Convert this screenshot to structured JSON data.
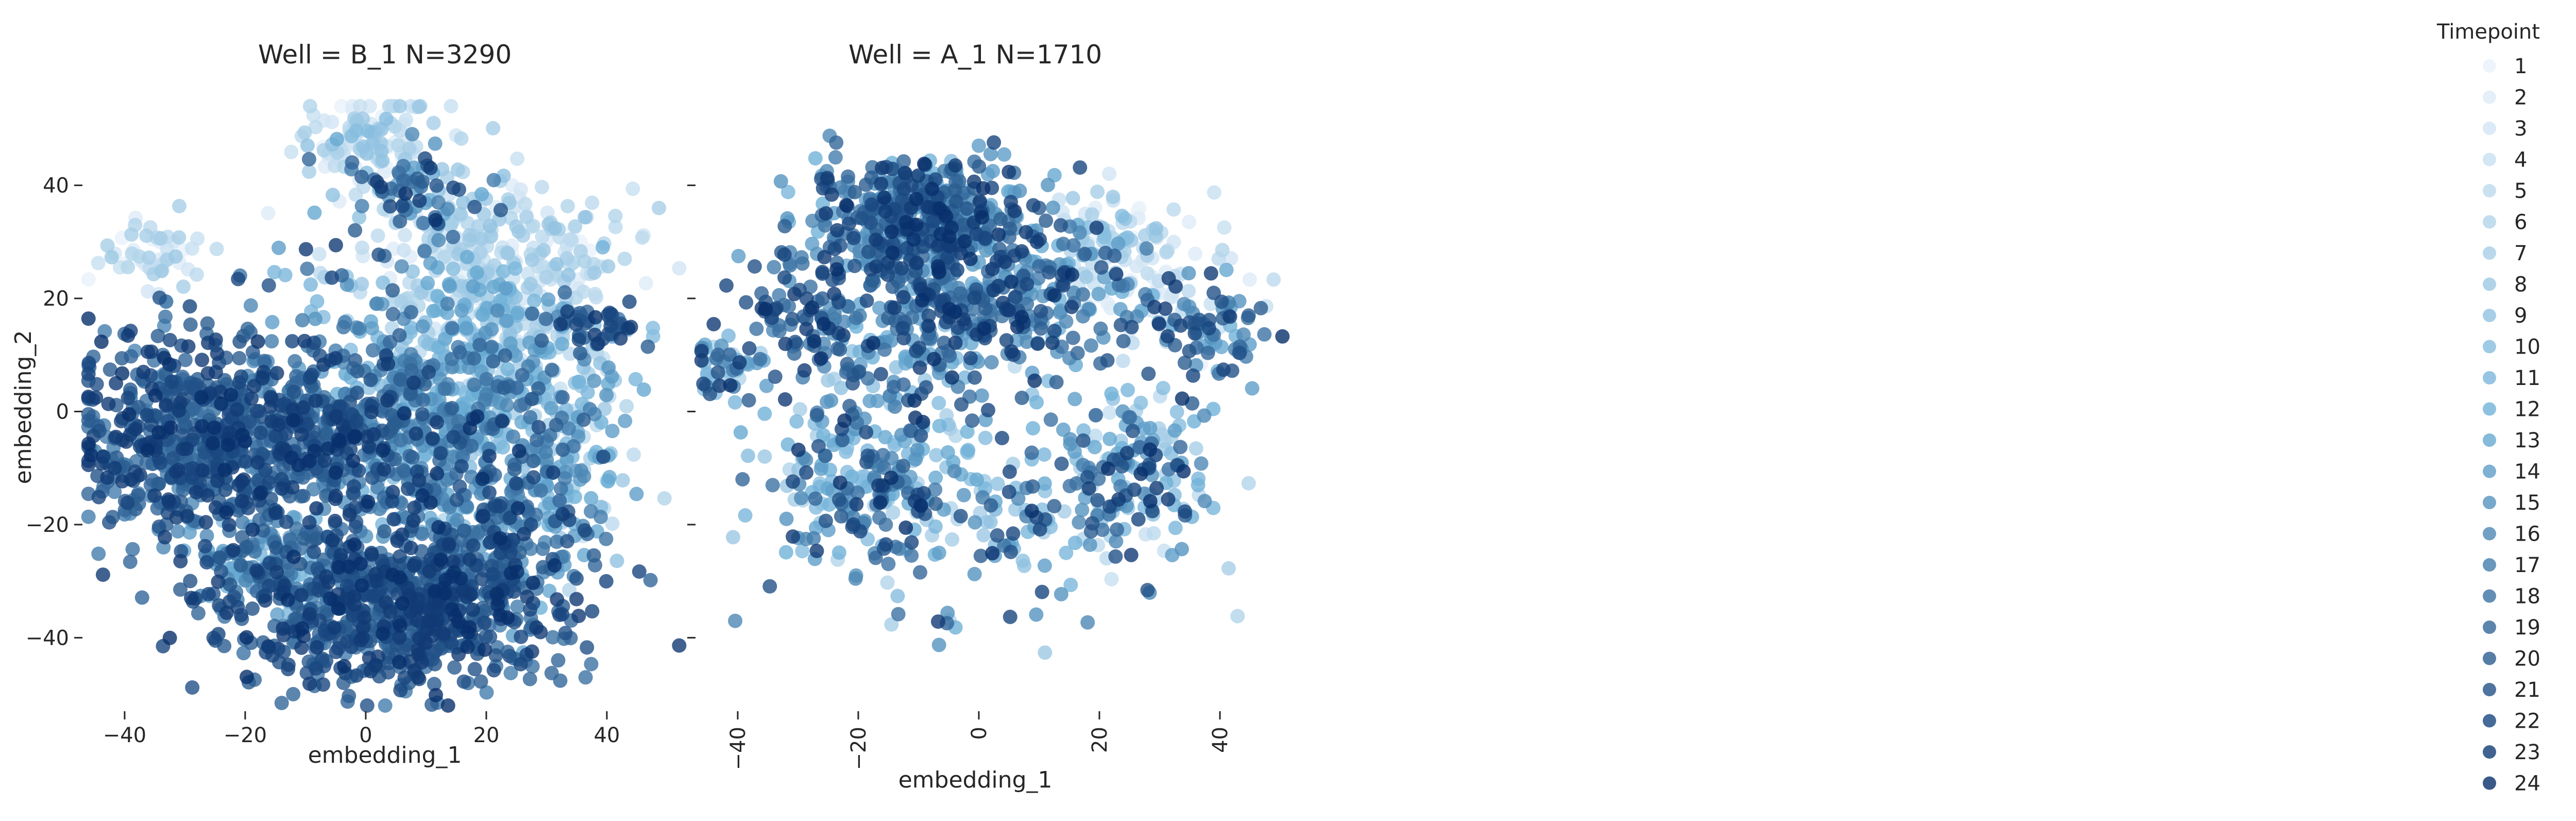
{
  "chart_data": {
    "type": "scatter",
    "legend": {
      "title": "Timepoint",
      "placement": "right",
      "entries": [
        "1",
        "2",
        "3",
        "4",
        "5",
        "6",
        "7",
        "8",
        "9",
        "10",
        "11",
        "12",
        "13",
        "14",
        "15",
        "16",
        "17",
        "18",
        "19",
        "20",
        "21",
        "22",
        "23",
        "24"
      ]
    },
    "colors": {
      "low": "#e8f1fa",
      "mid": "#6baed6",
      "high": "#08306b"
    },
    "panels": [
      {
        "title": "Well = B_1 N=3290",
        "xlabel": "embedding_1",
        "ylabel": "embedding_2",
        "xlim": [
          -47,
          53
        ],
        "ylim": [
          -53,
          55
        ],
        "xticks": [
          -40,
          -20,
          0,
          20,
          40
        ],
        "yticks": [
          -40,
          -20,
          0,
          20,
          40
        ],
        "x_tick_rotation": 0,
        "n_points": 3290,
        "clusters": [
          {
            "cx": 0,
            "cy": 48,
            "sx": 6,
            "sy": 4,
            "n": 110,
            "t": [
              1,
              10
            ]
          },
          {
            "cx": 8,
            "cy": 40,
            "sx": 5,
            "sy": 4,
            "n": 60,
            "t": [
              12,
              24
            ]
          },
          {
            "cx": -35,
            "cy": 28,
            "sx": 4,
            "sy": 3,
            "n": 50,
            "t": [
              1,
              8
            ]
          },
          {
            "cx": 18,
            "cy": 28,
            "sx": 12,
            "sy": 7,
            "n": 260,
            "t": [
              1,
              9
            ]
          },
          {
            "cx": 20,
            "cy": 15,
            "sx": 10,
            "sy": 6,
            "n": 180,
            "t": [
              2,
              14
            ]
          },
          {
            "cx": 10,
            "cy": 0,
            "sx": 12,
            "sy": 10,
            "n": 400,
            "t": [
              9,
              20
            ]
          },
          {
            "cx": 30,
            "cy": -5,
            "sx": 7,
            "sy": 10,
            "n": 180,
            "t": [
              4,
              16
            ]
          },
          {
            "cx": -30,
            "cy": -5,
            "sx": 9,
            "sy": 10,
            "n": 450,
            "t": [
              16,
              24
            ]
          },
          {
            "cx": -10,
            "cy": -5,
            "sx": 12,
            "sy": 8,
            "n": 420,
            "t": [
              16,
              24
            ]
          },
          {
            "cx": 5,
            "cy": -35,
            "sx": 14,
            "sy": 7,
            "n": 700,
            "t": [
              17,
              24
            ]
          },
          {
            "cx": 22,
            "cy": -20,
            "sx": 8,
            "sy": 10,
            "n": 260,
            "t": [
              12,
              24
            ]
          },
          {
            "cx": -15,
            "cy": -28,
            "sx": 7,
            "sy": 6,
            "n": 140,
            "t": [
              10,
              22
            ]
          },
          {
            "cx": 38,
            "cy": 15,
            "sx": 4,
            "sy": 2,
            "n": 40,
            "t": [
              18,
              24
            ]
          },
          {
            "cx": -5,
            "cy": 20,
            "sx": 12,
            "sy": 8,
            "n": 40,
            "t": [
              5,
              24
            ]
          }
        ]
      },
      {
        "title": "Well = A_1 N=1710",
        "xlabel": "embedding_1",
        "ylabel": "",
        "xlim": [
          -47,
          53
        ],
        "ylim": [
          -53,
          55
        ],
        "xticks": [
          -40,
          -20,
          0,
          20,
          40
        ],
        "yticks": [
          -40,
          -20,
          0,
          20,
          40
        ],
        "x_tick_rotation": -90,
        "n_points": 1710,
        "clusters": [
          {
            "cx": -10,
            "cy": 35,
            "sx": 9,
            "sy": 5,
            "n": 420,
            "t": [
              10,
              24
            ]
          },
          {
            "cx": 0,
            "cy": 20,
            "sx": 12,
            "sy": 7,
            "n": 380,
            "t": [
              12,
              24
            ]
          },
          {
            "cx": -30,
            "cy": 18,
            "sx": 5,
            "sy": 6,
            "n": 80,
            "t": [
              15,
              24
            ]
          },
          {
            "cx": 22,
            "cy": 30,
            "sx": 5,
            "sy": 5,
            "n": 80,
            "t": [
              1,
              10
            ]
          },
          {
            "cx": 30,
            "cy": 22,
            "sx": 8,
            "sy": 6,
            "n": 60,
            "t": [
              1,
              6
            ]
          },
          {
            "cx": -42,
            "cy": 8,
            "sx": 3,
            "sy": 3,
            "n": 50,
            "t": [
              6,
              24
            ]
          },
          {
            "cx": -20,
            "cy": -12,
            "sx": 9,
            "sy": 9,
            "n": 220,
            "t": [
              6,
              24
            ]
          },
          {
            "cx": 25,
            "cy": -12,
            "sx": 7,
            "sy": 8,
            "n": 170,
            "t": [
              4,
              24
            ]
          },
          {
            "cx": 38,
            "cy": 14,
            "sx": 5,
            "sy": 4,
            "n": 70,
            "t": [
              12,
              24
            ]
          },
          {
            "cx": 5,
            "cy": -20,
            "sx": 10,
            "sy": 10,
            "n": 100,
            "t": [
              6,
              24
            ]
          },
          {
            "cx": -10,
            "cy": 5,
            "sx": 10,
            "sy": 8,
            "n": 80,
            "t": [
              8,
              22
            ]
          }
        ]
      }
    ]
  }
}
